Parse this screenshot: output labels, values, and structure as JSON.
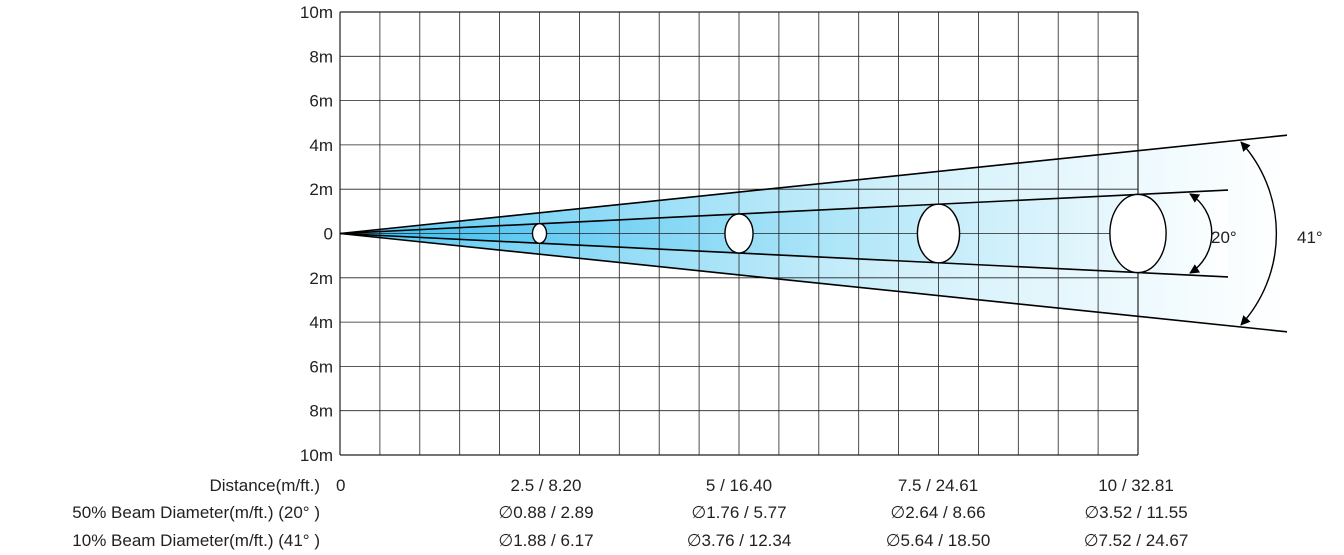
{
  "chart_data": {
    "type": "beam-angle-diagram",
    "y_axis": {
      "tick_labels": [
        "10m",
        "8m",
        "6m",
        "4m",
        "2m",
        "0",
        "2m",
        "4m",
        "6m",
        "8m",
        "10m"
      ],
      "ylim": [
        -10,
        10
      ],
      "unit": "m"
    },
    "x_axis": {
      "xlim": [
        0,
        10
      ],
      "unit": "m"
    },
    "grid": true,
    "beam_angles_deg": {
      "field": 41,
      "beam": 20
    },
    "angle_labels": {
      "field": "41°",
      "beam": "20°"
    },
    "distances_m": [
      2.5,
      5,
      7.5,
      10
    ],
    "colors": {
      "beam_center": "#3cc3f0",
      "beam_edge": "#ffffff",
      "grid": "#222222",
      "line": "#000000"
    },
    "table": {
      "rows": [
        {
          "label": "Distance(m/ft.)",
          "start": "0",
          "values": [
            "2.5 / 8.20",
            "5 / 16.40",
            "7.5 / 24.61",
            "10 / 32.81"
          ]
        },
        {
          "label": "50% Beam Diameter(m/ft.) (20° )",
          "values": [
            "∅0.88 / 2.89",
            "∅1.76 / 5.77",
            "∅2.64 / 8.66",
            "∅3.52 / 11.55"
          ]
        },
        {
          "label": "10% Beam Diameter(m/ft.) (41° )",
          "values": [
            "∅1.88 / 6.17",
            "∅3.76 / 12.34",
            "∅5.64 / 18.50",
            "∅7.52 / 24.67"
          ]
        }
      ]
    }
  }
}
